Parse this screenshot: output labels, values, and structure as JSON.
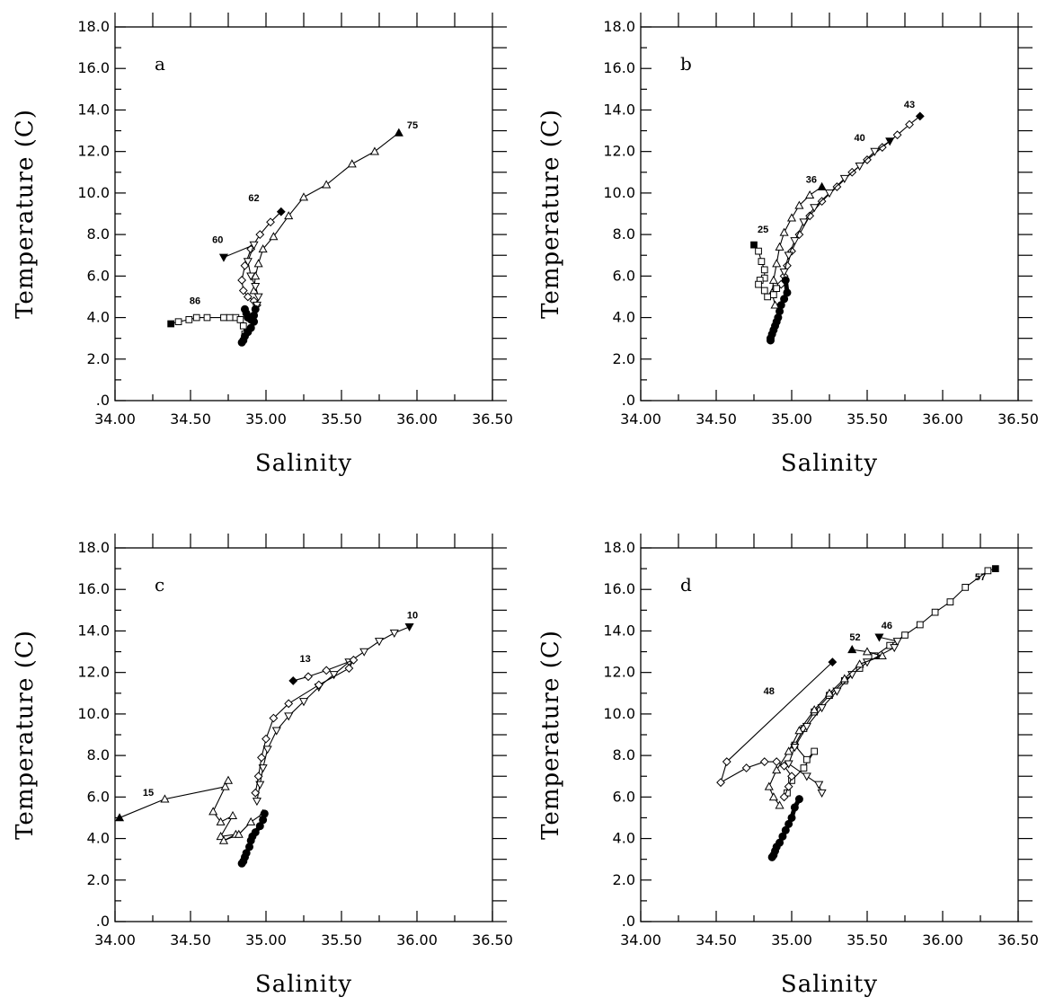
{
  "chart_data": [
    {
      "type": "scatter",
      "panel_label": "a",
      "xlabel": "Salinity",
      "ylabel": "Temperature (C)",
      "xlim": [
        34.0,
        36.5
      ],
      "ylim": [
        0.0,
        18.0
      ],
      "x_ticks": [
        "34.00",
        "34.50",
        "35.00",
        "35.50",
        "36.00",
        "36.50"
      ],
      "y_ticks": [
        ".0",
        "2.0",
        "4.0",
        "6.0",
        "8.0",
        "10.0",
        "12.0",
        "14.0",
        "16.0",
        "18.0"
      ],
      "series": [
        {
          "name": "75",
          "marker": "triangle",
          "label_pos": [
            35.97,
            13.1
          ],
          "x": [
            35.88,
            35.72,
            35.57,
            35.4,
            35.25,
            35.15,
            35.05,
            34.98,
            34.95,
            34.93,
            34.92
          ],
          "y": [
            12.9,
            12.0,
            11.4,
            10.4,
            9.8,
            8.9,
            7.9,
            7.3,
            6.6,
            6.0,
            5.3
          ]
        },
        {
          "name": "62",
          "marker": "diamond",
          "label_pos": [
            34.92,
            9.6
          ],
          "x": [
            35.1,
            35.03,
            34.96,
            34.9,
            34.86,
            34.84,
            34.85,
            34.88,
            34.92,
            34.94
          ],
          "y": [
            9.1,
            8.6,
            8.0,
            7.3,
            6.5,
            5.8,
            5.3,
            5.0,
            4.8,
            4.6
          ]
        },
        {
          "name": "60",
          "marker": "inverted-triangle",
          "label_pos": [
            34.68,
            7.6
          ],
          "x": [
            34.72,
            34.92,
            34.88,
            34.9,
            34.93,
            34.95,
            34.94
          ],
          "y": [
            6.9,
            7.5,
            6.7,
            6.0,
            5.5,
            5.0,
            4.6
          ]
        },
        {
          "name": "86",
          "marker": "square",
          "label_pos": [
            34.53,
            4.65
          ],
          "x": [
            34.37,
            34.42,
            34.49,
            34.54,
            34.61,
            34.72,
            34.76,
            34.8,
            34.83,
            34.85,
            34.86
          ],
          "y": [
            3.7,
            3.8,
            3.9,
            4.0,
            4.0,
            4.0,
            4.0,
            4.0,
            3.9,
            3.6,
            3.2
          ]
        },
        {
          "name": "",
          "marker": "filled",
          "label_pos": null,
          "x": [
            34.86,
            34.87,
            34.88,
            34.9,
            34.92,
            34.93,
            34.92,
            34.9,
            34.88,
            34.86,
            34.85,
            34.84
          ],
          "y": [
            4.4,
            4.2,
            4.0,
            3.9,
            4.1,
            4.4,
            3.8,
            3.5,
            3.3,
            3.1,
            2.9,
            2.8
          ]
        }
      ]
    },
    {
      "type": "scatter",
      "panel_label": "b",
      "xlabel": "Salinity",
      "ylabel": "Temperature (C)",
      "xlim": [
        34.0,
        36.5
      ],
      "ylim": [
        0.0,
        18.0
      ],
      "x_ticks": [
        "34.00",
        "34.50",
        "35.00",
        "35.50",
        "36.00",
        "36.50"
      ],
      "y_ticks": [
        ".0",
        "2.0",
        "4.0",
        "6.0",
        "8.0",
        "10.0",
        "12.0",
        "14.0",
        "16.0",
        "18.0"
      ],
      "series": [
        {
          "name": "43",
          "marker": "diamond",
          "label_pos": [
            35.78,
            14.1
          ],
          "x": [
            35.85,
            35.78,
            35.7,
            35.6,
            35.5,
            35.4,
            35.3,
            35.2,
            35.12,
            35.05,
            35.0,
            34.97,
            34.95,
            34.93
          ],
          "y": [
            13.7,
            13.3,
            12.8,
            12.2,
            11.6,
            11.0,
            10.3,
            9.6,
            8.9,
            8.0,
            7.2,
            6.5,
            6.0,
            5.6
          ]
        },
        {
          "name": "40",
          "marker": "inverted-triangle",
          "label_pos": [
            35.45,
            12.5
          ],
          "x": [
            35.65,
            35.55,
            35.45,
            35.35,
            35.25,
            35.15,
            35.08,
            35.02,
            34.98,
            34.95
          ],
          "y": [
            12.5,
            12.0,
            11.3,
            10.7,
            10.0,
            9.3,
            8.6,
            7.7,
            7.0,
            6.2
          ]
        },
        {
          "name": "36",
          "marker": "triangle",
          "label_pos": [
            35.13,
            10.5
          ],
          "x": [
            35.2,
            35.12,
            35.05,
            35.0,
            34.95,
            34.92,
            34.9,
            34.88,
            34.87,
            34.89
          ],
          "y": [
            10.3,
            9.9,
            9.4,
            8.8,
            8.1,
            7.4,
            6.6,
            5.8,
            5.2,
            4.6
          ]
        },
        {
          "name": "25",
          "marker": "square",
          "label_pos": [
            34.81,
            8.1
          ],
          "x": [
            34.75,
            34.78,
            34.8,
            34.82,
            34.82,
            34.79,
            34.78,
            34.82,
            34.84,
            34.88,
            34.9
          ],
          "y": [
            7.5,
            7.2,
            6.7,
            6.3,
            5.9,
            5.8,
            5.6,
            5.3,
            5.0,
            5.1,
            5.4
          ]
        },
        {
          "name": "",
          "marker": "filled",
          "label_pos": null,
          "x": [
            34.96,
            34.97,
            34.95,
            34.93,
            34.92,
            34.91,
            34.9,
            34.89,
            34.88,
            34.87,
            34.86,
            34.86
          ],
          "y": [
            5.8,
            5.2,
            4.9,
            4.6,
            4.3,
            4.0,
            3.8,
            3.6,
            3.4,
            3.2,
            3.0,
            2.9
          ]
        }
      ]
    },
    {
      "type": "scatter",
      "panel_label": "c",
      "xlabel": "Salinity",
      "ylabel": "Temperature (C)",
      "xlim": [
        34.0,
        36.5
      ],
      "ylim": [
        0.0,
        18.0
      ],
      "x_ticks": [
        "34.00",
        "34.50",
        "35.00",
        "35.50",
        "36.00",
        "36.50"
      ],
      "y_ticks": [
        ".0",
        "2.0",
        "4.0",
        "6.0",
        "8.0",
        "10.0",
        "12.0",
        "14.0",
        "16.0",
        "18.0"
      ],
      "series": [
        {
          "name": "10",
          "marker": "inverted-triangle",
          "label_pos": [
            35.97,
            14.6
          ],
          "x": [
            35.95,
            35.85,
            35.75,
            35.65,
            35.55,
            35.45,
            35.35,
            35.25,
            35.15,
            35.07,
            35.01,
            34.98,
            34.96,
            34.94
          ],
          "y": [
            14.2,
            13.9,
            13.5,
            13.0,
            12.5,
            11.9,
            11.3,
            10.6,
            9.9,
            9.2,
            8.3,
            7.4,
            6.6,
            5.8
          ]
        },
        {
          "name": "13",
          "marker": "diamond",
          "label_pos": [
            35.26,
            12.5
          ],
          "x": [
            35.18,
            35.28,
            35.4,
            35.58,
            35.55,
            35.35,
            35.15,
            35.05,
            35.0,
            34.97,
            34.95,
            34.93
          ],
          "y": [
            11.6,
            11.8,
            12.1,
            12.6,
            12.2,
            11.4,
            10.5,
            9.8,
            8.8,
            7.9,
            7.0,
            6.2
          ]
        },
        {
          "name": "15",
          "marker": "triangle",
          "label_pos": [
            34.22,
            6.05
          ],
          "x": [
            34.03,
            34.33,
            34.73,
            34.75,
            34.65,
            34.7,
            34.78,
            34.7,
            34.8,
            34.72,
            34.82,
            34.9,
            34.98
          ],
          "y": [
            5.0,
            5.9,
            6.5,
            6.8,
            5.3,
            4.8,
            5.1,
            4.1,
            4.2,
            3.9,
            4.2,
            4.8,
            5.2
          ]
        },
        {
          "name": "",
          "marker": "filled",
          "label_pos": null,
          "x": [
            34.99,
            34.98,
            34.96,
            34.93,
            34.91,
            34.9,
            34.89,
            34.87,
            34.86,
            34.85,
            34.84
          ],
          "y": [
            5.2,
            4.9,
            4.6,
            4.3,
            4.1,
            3.9,
            3.6,
            3.3,
            3.1,
            2.9,
            2.8
          ]
        }
      ]
    },
    {
      "type": "scatter",
      "panel_label": "d",
      "xlabel": "Salinity",
      "ylabel": "Temperature (C)",
      "xlim": [
        34.0,
        36.5
      ],
      "ylim": [
        0.0,
        18.0
      ],
      "x_ticks": [
        "34.00",
        "34.50",
        "35.00",
        "35.50",
        "36.00",
        "36.50"
      ],
      "y_ticks": [
        ".0",
        "2.0",
        "4.0",
        "6.0",
        "8.0",
        "10.0",
        "12.0",
        "14.0",
        "16.0",
        "18.0"
      ],
      "series": [
        {
          "name": "57",
          "marker": "square",
          "label_pos": [
            36.25,
            16.45
          ],
          "x": [
            36.35,
            36.3,
            36.15,
            36.05,
            35.95,
            35.85,
            35.75,
            35.65,
            35.55,
            35.45,
            35.35,
            35.25,
            35.15,
            35.08,
            35.02,
            35.1,
            35.15,
            35.08,
            35.0,
            34.97
          ],
          "y": [
            17.0,
            16.9,
            16.1,
            15.4,
            14.9,
            14.3,
            13.8,
            13.3,
            12.8,
            12.2,
            11.6,
            10.9,
            10.1,
            9.3,
            8.5,
            7.8,
            8.2,
            7.4,
            6.8,
            6.2
          ]
        },
        {
          "name": "46",
          "marker": "inverted-triangle",
          "label_pos": [
            35.63,
            14.1
          ],
          "x": [
            35.58,
            35.7,
            35.68,
            35.5,
            35.4,
            35.3,
            35.2,
            35.1,
            35.02,
            34.98,
            35.1,
            35.18,
            35.2
          ],
          "y": [
            13.7,
            13.5,
            13.2,
            12.5,
            11.9,
            11.1,
            10.3,
            9.4,
            8.4,
            7.6,
            7.0,
            6.6,
            6.2
          ]
        },
        {
          "name": "52",
          "marker": "triangle",
          "label_pos": [
            35.42,
            13.55
          ],
          "x": [
            35.4,
            35.5,
            35.6,
            35.45,
            35.35,
            35.25,
            35.15,
            35.05,
            34.98,
            34.9,
            34.85,
            34.88,
            34.92
          ],
          "y": [
            13.1,
            13.0,
            12.8,
            12.4,
            11.7,
            11.0,
            10.2,
            9.2,
            8.2,
            7.3,
            6.5,
            6.0,
            5.6
          ]
        },
        {
          "name": "48",
          "marker": "diamond",
          "label_pos": [
            34.85,
            10.95
          ],
          "x": [
            35.27,
            34.57,
            34.53,
            34.7,
            34.82,
            34.9,
            34.95,
            35.0,
            34.98,
            34.95
          ],
          "y": [
            12.5,
            7.7,
            6.7,
            7.4,
            7.7,
            7.7,
            7.5,
            7.0,
            6.5,
            6.0
          ]
        },
        {
          "name": "",
          "marker": "filled",
          "label_pos": null,
          "x": [
            35.05,
            35.02,
            35.0,
            34.98,
            34.96,
            34.94,
            34.92,
            34.9,
            34.89,
            34.88,
            34.87
          ],
          "y": [
            5.9,
            5.5,
            5.0,
            4.7,
            4.4,
            4.1,
            3.8,
            3.6,
            3.4,
            3.2,
            3.1
          ]
        }
      ]
    }
  ]
}
